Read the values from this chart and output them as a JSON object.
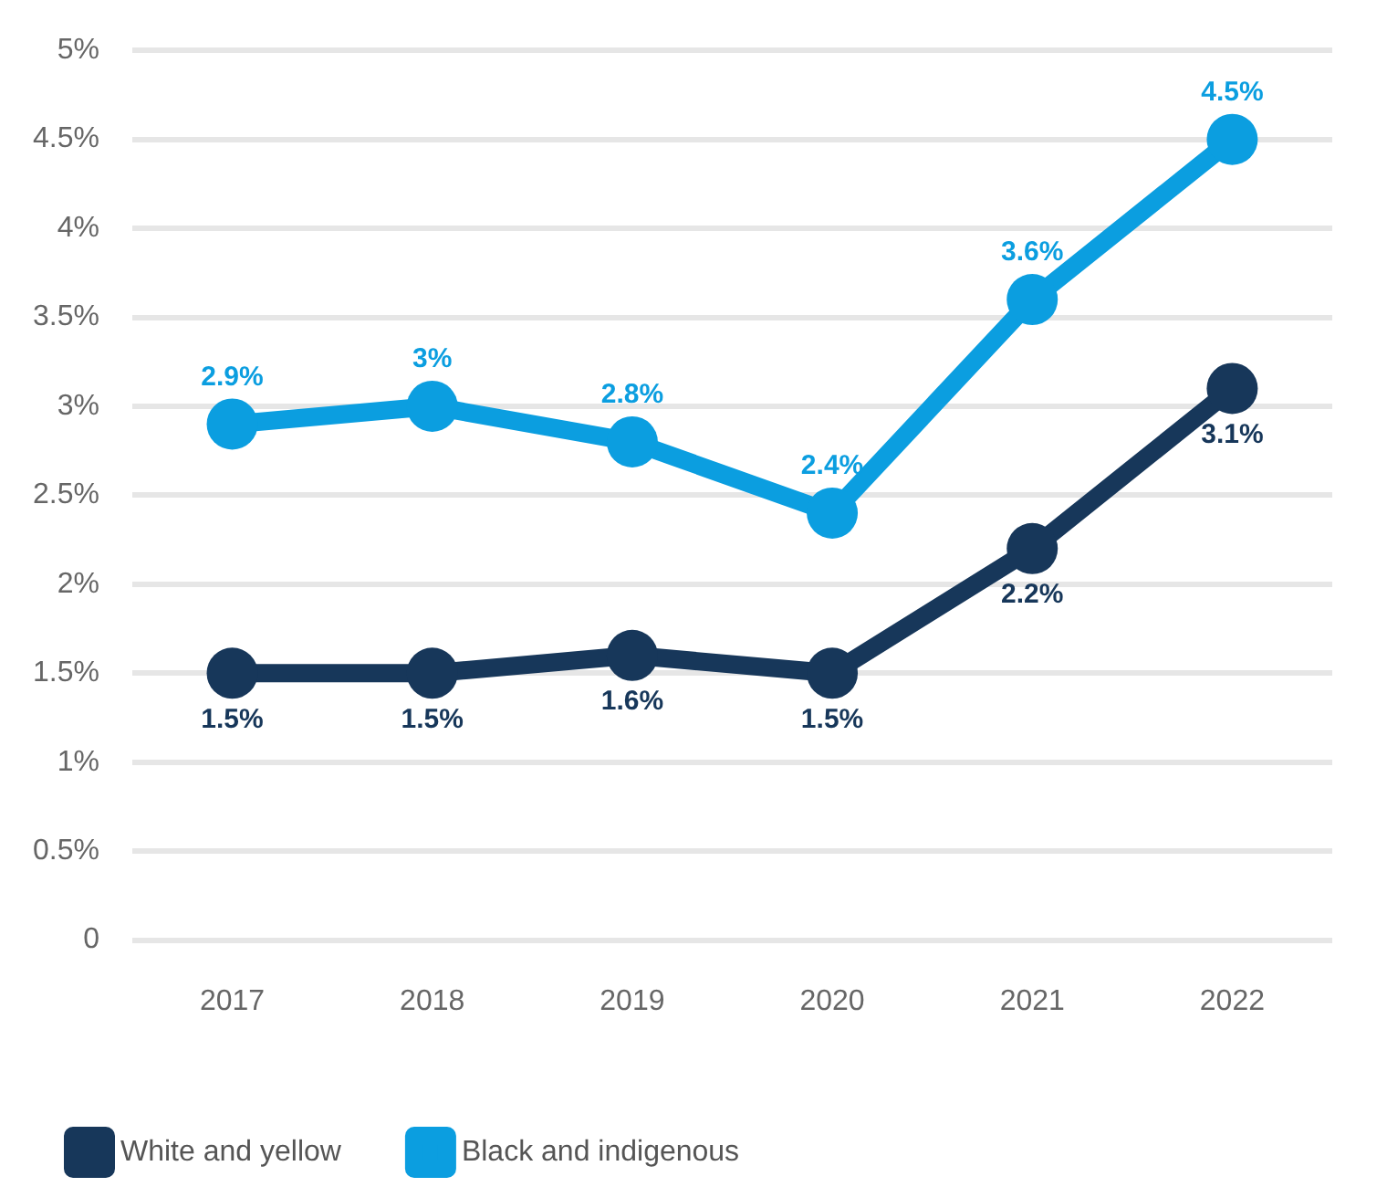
{
  "chart_data": {
    "type": "line",
    "categories": [
      "2017",
      "2018",
      "2019",
      "2020",
      "2021",
      "2022"
    ],
    "series": [
      {
        "name": "White and yellow",
        "color": "#17375a",
        "values": [
          1.5,
          1.5,
          1.6,
          1.5,
          2.2,
          3.1
        ],
        "value_labels": [
          "1.5%",
          "1.5%",
          "1.6%",
          "1.5%",
          "2.2%",
          "3.1%"
        ]
      },
      {
        "name": "Black and indigenous",
        "color": "#0b9ee0",
        "values": [
          2.9,
          3,
          2.8,
          2.4,
          3.6,
          4.5
        ],
        "value_labels": [
          "2.9%",
          "3%",
          "2.8%",
          "2.4%",
          "3.6%",
          "4.5%"
        ]
      }
    ],
    "ylim": [
      0,
      5
    ],
    "yticks": [
      0,
      {
        "value": 0.5,
        "label": "0.5%"
      },
      {
        "value": 1,
        "label": "1%"
      },
      {
        "value": 1.5,
        "label": "1.5%"
      },
      {
        "value": 2,
        "label": "2%"
      },
      {
        "value": 2.5,
        "label": "2.5%"
      },
      {
        "value": 3,
        "label": "3%"
      },
      {
        "value": 3.5,
        "label": "3.5%"
      },
      {
        "value": 4,
        "label": "4%"
      },
      {
        "value": 4.5,
        "label": "4.5%"
      },
      {
        "value": 5,
        "label": "5%"
      }
    ],
    "grid": "y",
    "legend": "bottom left",
    "marker": "circle",
    "line_style": "solid"
  }
}
